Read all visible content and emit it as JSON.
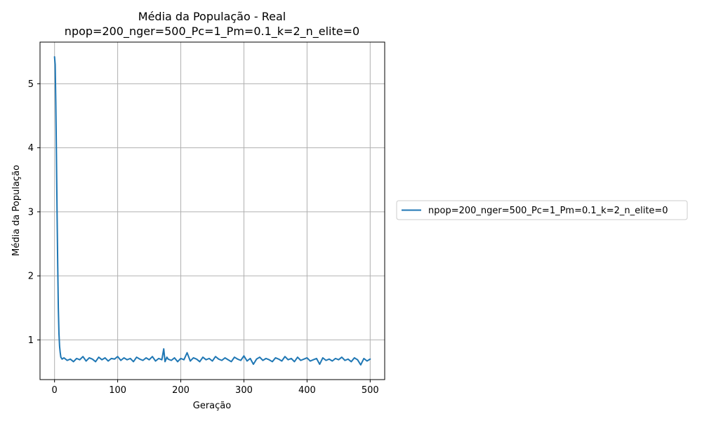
{
  "chart_data": {
    "type": "line",
    "title": "Média da População - Real",
    "subtitle": "npop=200_nger=500_Pc=1_Pm=0.1_k=2_n_elite=0",
    "xlabel": "Geração",
    "ylabel": "Média da População",
    "xlim": [
      -23,
      523
    ],
    "ylim": [
      0.38,
      5.65
    ],
    "xticks": [
      0,
      100,
      200,
      300,
      400,
      500
    ],
    "yticks": [
      1,
      2,
      3,
      4,
      5
    ],
    "grid": true,
    "legend_position": "right, outside plot",
    "series": [
      {
        "name": "npop=200_nger=500_Pc=1_Pm=0.1_k=2_n_elite=0",
        "color": "#1f77b4",
        "x": [
          0,
          1,
          2,
          3,
          4,
          5,
          6,
          7,
          8,
          9,
          10,
          12,
          15,
          20,
          25,
          30,
          35,
          40,
          45,
          50,
          55,
          60,
          65,
          70,
          75,
          80,
          85,
          90,
          95,
          100,
          105,
          110,
          115,
          120,
          125,
          130,
          135,
          140,
          145,
          150,
          155,
          160,
          165,
          170,
          173,
          175,
          178,
          180,
          185,
          190,
          195,
          200,
          205,
          210,
          215,
          220,
          225,
          230,
          235,
          240,
          245,
          250,
          255,
          260,
          265,
          270,
          275,
          280,
          285,
          290,
          295,
          300,
          305,
          310,
          315,
          320,
          325,
          330,
          335,
          340,
          345,
          350,
          355,
          360,
          365,
          370,
          375,
          380,
          385,
          390,
          395,
          400,
          405,
          410,
          415,
          420,
          425,
          430,
          435,
          440,
          445,
          450,
          455,
          460,
          465,
          470,
          475,
          480,
          485,
          490,
          495,
          500
        ],
        "y": [
          5.42,
          5.3,
          4.7,
          3.9,
          3.0,
          2.2,
          1.5,
          1.1,
          0.9,
          0.8,
          0.73,
          0.7,
          0.72,
          0.68,
          0.7,
          0.66,
          0.71,
          0.69,
          0.74,
          0.67,
          0.72,
          0.7,
          0.66,
          0.73,
          0.69,
          0.72,
          0.67,
          0.71,
          0.7,
          0.74,
          0.68,
          0.72,
          0.69,
          0.71,
          0.66,
          0.73,
          0.7,
          0.68,
          0.72,
          0.69,
          0.74,
          0.67,
          0.71,
          0.69,
          0.86,
          0.66,
          0.73,
          0.7,
          0.68,
          0.72,
          0.66,
          0.71,
          0.69,
          0.8,
          0.67,
          0.72,
          0.7,
          0.66,
          0.73,
          0.69,
          0.71,
          0.67,
          0.74,
          0.7,
          0.68,
          0.72,
          0.69,
          0.66,
          0.73,
          0.7,
          0.68,
          0.75,
          0.67,
          0.71,
          0.62,
          0.7,
          0.73,
          0.68,
          0.71,
          0.69,
          0.66,
          0.72,
          0.7,
          0.67,
          0.74,
          0.69,
          0.71,
          0.66,
          0.73,
          0.68,
          0.7,
          0.72,
          0.67,
          0.69,
          0.71,
          0.62,
          0.72,
          0.68,
          0.7,
          0.67,
          0.71,
          0.69,
          0.73,
          0.68,
          0.7,
          0.66,
          0.72,
          0.69,
          0.61,
          0.71,
          0.67,
          0.7
        ]
      }
    ]
  }
}
